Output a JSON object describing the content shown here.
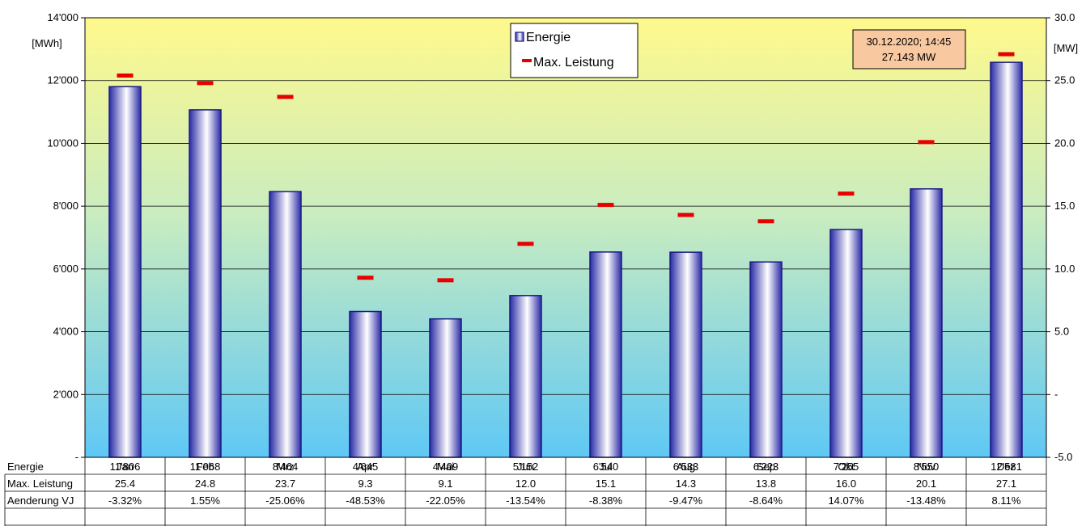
{
  "chart_data": {
    "type": "bar",
    "categories": [
      "Jan",
      "Feb",
      "Mrz",
      "Apr",
      "Mai",
      "Jun",
      "Jul",
      "Aug",
      "Sep",
      "Okt",
      "Nov",
      "Dez"
    ],
    "series": [
      {
        "name": "Energie",
        "axis": "left",
        "kind": "bar",
        "values": [
          11806,
          11068,
          8464,
          4645,
          4409,
          5152,
          6540,
          6533,
          6223,
          7255,
          8550,
          12581
        ]
      },
      {
        "name": "Max. Leistung",
        "axis": "right",
        "kind": "marker",
        "values": [
          25.4,
          24.8,
          23.7,
          9.3,
          9.1,
          12.0,
          15.1,
          14.3,
          13.8,
          16.0,
          20.1,
          27.1
        ]
      }
    ],
    "left_axis": {
      "unit": "[MWh]",
      "ylim": [
        0,
        14000
      ],
      "ticks": [
        0,
        2000,
        4000,
        6000,
        8000,
        10000,
        12000,
        14000
      ],
      "tick_labels": [
        "-",
        "2'000",
        "4'000",
        "6'000",
        "8'000",
        "10'000",
        "12'000",
        "14'000"
      ]
    },
    "right_axis": {
      "unit": "[MW]",
      "ylim": [
        -5,
        30
      ],
      "ticks": [
        -5,
        0,
        5,
        10,
        15,
        20,
        25,
        30
      ],
      "tick_labels": [
        "-5.0",
        "-",
        "5.0",
        "10.0",
        "15.0",
        "20.0",
        "25.0",
        "30.0"
      ]
    },
    "grid": true,
    "legend": {
      "placement": "top-center",
      "entries": [
        "Energie",
        "Max. Leistung"
      ]
    },
    "annotation": {
      "line1": "30.12.2020; 14:45",
      "line2": "27.143 MW"
    },
    "table": {
      "rows": [
        {
          "label": "Energie",
          "cells": [
            "11'806",
            "11'068",
            "8'464",
            "4'645",
            "4'409",
            "5'152",
            "6'540",
            "6'533",
            "6'223",
            "7'255",
            "8'550",
            "12'581"
          ]
        },
        {
          "label": "Max. Leistung",
          "cells": [
            "25.4",
            "24.8",
            "23.7",
            "9.3",
            "9.1",
            "12.0",
            "15.1",
            "14.3",
            "13.8",
            "16.0",
            "20.1",
            "27.1"
          ]
        },
        {
          "label": "Aenderung VJ",
          "cells": [
            "-3.32%",
            "1.55%",
            "-25.06%",
            "-48.53%",
            "-22.05%",
            "-13.54%",
            "-8.38%",
            "-9.47%",
            "-8.64%",
            "14.07%",
            "-13.48%",
            "8.11%"
          ]
        }
      ]
    },
    "colors": {
      "bar_edge": "#1a1a80",
      "bar_fill_dark": "#2a2aa8",
      "bar_fill_light": "#ffffff",
      "marker": "#e60000",
      "bg_top": "#fff98c",
      "bg_bottom": "#5fc8f5",
      "annotation_bg": "#f8c8a0"
    }
  }
}
